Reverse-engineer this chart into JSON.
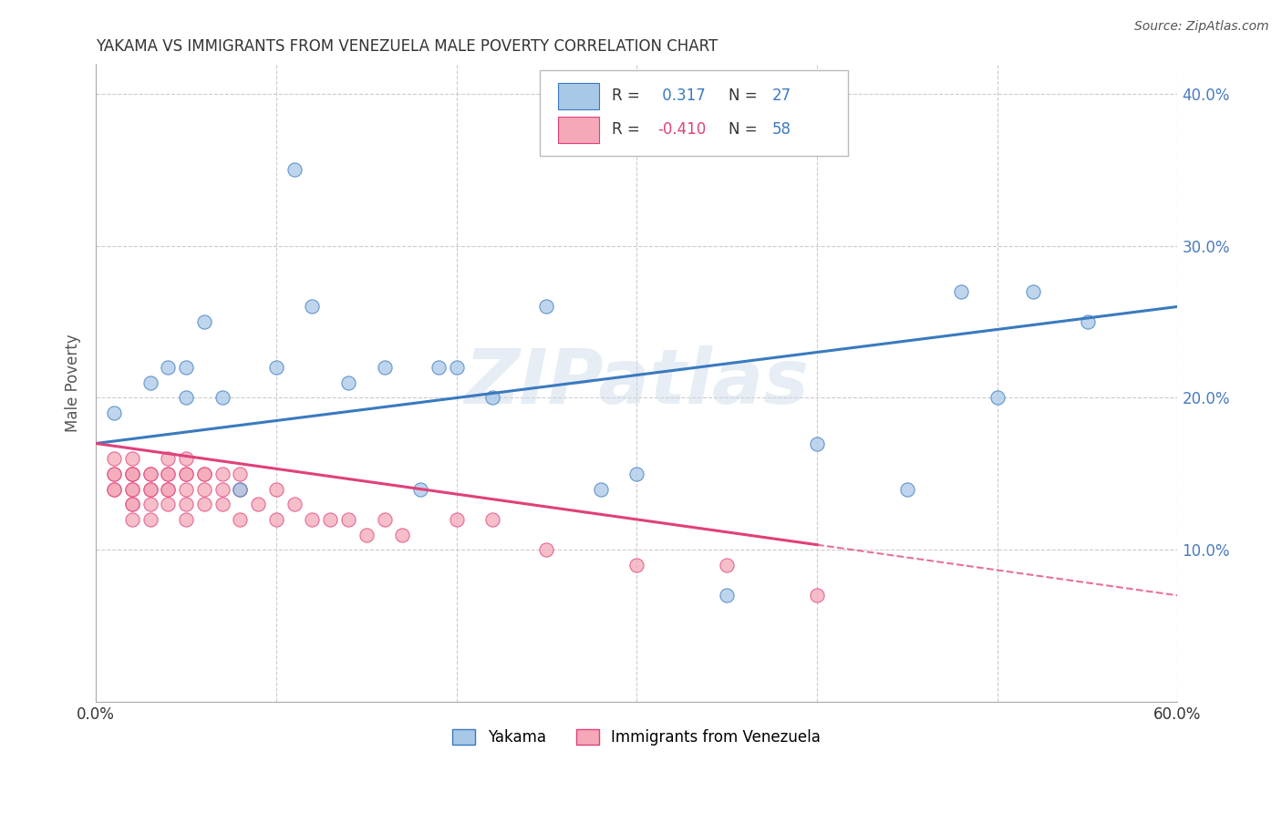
{
  "title": "YAKAMA VS IMMIGRANTS FROM VENEZUELA MALE POVERTY CORRELATION CHART",
  "source": "Source: ZipAtlas.com",
  "ylabel": "Male Poverty",
  "xlim": [
    0.0,
    0.6
  ],
  "ylim": [
    0.0,
    0.42
  ],
  "x_ticks": [
    0.0,
    0.1,
    0.2,
    0.3,
    0.4,
    0.5,
    0.6
  ],
  "x_tick_labels": [
    "0.0%",
    "",
    "",
    "",
    "",
    "",
    "60.0%"
  ],
  "y_ticks": [
    0.0,
    0.1,
    0.2,
    0.3,
    0.4
  ],
  "y_tick_labels_right": [
    "",
    "10.0%",
    "20.0%",
    "30.0%",
    "40.0%"
  ],
  "r_yakama": 0.317,
  "n_yakama": 27,
  "r_venezuela": -0.41,
  "n_venezuela": 58,
  "color_yakama": "#a8c8e8",
  "color_venezuela": "#f4a8b8",
  "line_color_yakama": "#3a7abf",
  "line_color_venezuela": "#e0407a",
  "background_color": "#ffffff",
  "watermark": "ZIPatlas",
  "grid_color": "#cccccc",
  "tick_color": "#4a7abf",
  "yakama_x": [
    0.01,
    0.03,
    0.04,
    0.05,
    0.05,
    0.06,
    0.07,
    0.08,
    0.1,
    0.11,
    0.12,
    0.14,
    0.16,
    0.18,
    0.19,
    0.2,
    0.22,
    0.25,
    0.28,
    0.3,
    0.35,
    0.4,
    0.45,
    0.48,
    0.5,
    0.52,
    0.55
  ],
  "yakama_y": [
    0.19,
    0.21,
    0.22,
    0.22,
    0.2,
    0.25,
    0.2,
    0.14,
    0.22,
    0.35,
    0.26,
    0.21,
    0.22,
    0.14,
    0.22,
    0.22,
    0.2,
    0.26,
    0.14,
    0.15,
    0.07,
    0.17,
    0.14,
    0.27,
    0.2,
    0.27,
    0.25
  ],
  "venezuela_x": [
    0.01,
    0.01,
    0.01,
    0.01,
    0.01,
    0.02,
    0.02,
    0.02,
    0.02,
    0.02,
    0.02,
    0.02,
    0.02,
    0.02,
    0.03,
    0.03,
    0.03,
    0.03,
    0.03,
    0.03,
    0.04,
    0.04,
    0.04,
    0.04,
    0.04,
    0.04,
    0.05,
    0.05,
    0.05,
    0.05,
    0.05,
    0.05,
    0.06,
    0.06,
    0.06,
    0.06,
    0.07,
    0.07,
    0.07,
    0.08,
    0.08,
    0.08,
    0.09,
    0.1,
    0.1,
    0.11,
    0.12,
    0.13,
    0.14,
    0.15,
    0.16,
    0.17,
    0.2,
    0.22,
    0.25,
    0.3,
    0.35,
    0.4
  ],
  "venezuela_y": [
    0.14,
    0.14,
    0.15,
    0.15,
    0.16,
    0.12,
    0.13,
    0.13,
    0.14,
    0.14,
    0.15,
    0.15,
    0.15,
    0.16,
    0.12,
    0.13,
    0.14,
    0.14,
    0.15,
    0.15,
    0.13,
    0.14,
    0.14,
    0.15,
    0.15,
    0.16,
    0.12,
    0.13,
    0.14,
    0.15,
    0.15,
    0.16,
    0.13,
    0.14,
    0.15,
    0.15,
    0.13,
    0.14,
    0.15,
    0.12,
    0.14,
    0.15,
    0.13,
    0.12,
    0.14,
    0.13,
    0.12,
    0.12,
    0.12,
    0.11,
    0.12,
    0.11,
    0.12,
    0.12,
    0.1,
    0.09,
    0.09,
    0.07
  ],
  "venezuela_line_solid_end": 0.4,
  "venezuela_line_dashed_end": 0.6
}
